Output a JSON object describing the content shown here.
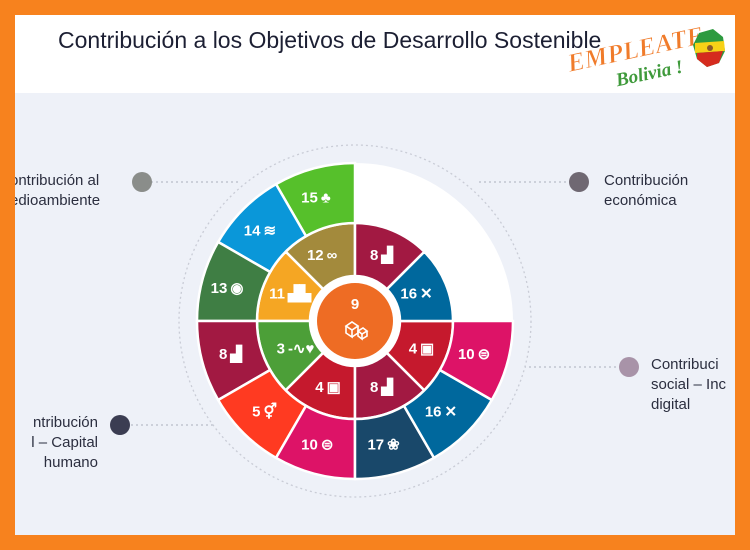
{
  "title": "Contribución a los Objetivos de Desarrollo Sostenible",
  "logo": {
    "line1": "EMPLEATE",
    "line2": "Bolivia !"
  },
  "categories": [
    {
      "id": "medioambiente",
      "lines": [
        "ontribución al",
        "edioambiente"
      ],
      "dot_color": "#8a8d8a"
    },
    {
      "id": "economica",
      "lines": [
        "Contribución",
        "económica"
      ],
      "dot_color": "#6f6872"
    },
    {
      "id": "social-inclusion",
      "lines": [
        "Contribuci",
        "social – Inc",
        "digital"
      ],
      "dot_color": "#a893a8"
    },
    {
      "id": "capital-humano",
      "lines": [
        "ntribución",
        "l – Capital",
        "humano"
      ],
      "dot_color": "#3b3d52"
    }
  ],
  "center": {
    "number": "9",
    "color": "#ee6c24"
  },
  "segments": [
    {
      "ring": "inner",
      "number": "12",
      "symbol": "∞",
      "color": "#a38a3c"
    },
    {
      "ring": "inner",
      "number": "11",
      "symbol": "▟▙",
      "color": "#f5a623"
    },
    {
      "ring": "inner",
      "number": "3",
      "symbol": "-∿♥",
      "color": "#4c9f38"
    },
    {
      "ring": "inner",
      "number": "4",
      "symbol": "▣",
      "color": "#c5192d"
    },
    {
      "ring": "inner",
      "number": "8",
      "symbol": "▟",
      "color": "#a21942"
    },
    {
      "ring": "inner",
      "number": "4",
      "symbol": "▣",
      "color": "#c5192d"
    },
    {
      "ring": "inner",
      "number": "16",
      "symbol": "✕",
      "color": "#00689d"
    },
    {
      "ring": "inner",
      "number": "8",
      "symbol": "▟",
      "color": "#a21942"
    },
    {
      "ring": "outer",
      "number": "15",
      "symbol": "♣",
      "color": "#56c02b"
    },
    {
      "ring": "outer",
      "number": "14",
      "symbol": "≋",
      "color": "#0a97d9"
    },
    {
      "ring": "outer",
      "number": "13",
      "symbol": "◉",
      "color": "#3f7e44"
    },
    {
      "ring": "outer",
      "number": "8",
      "symbol": "▟",
      "color": "#a21942"
    },
    {
      "ring": "outer",
      "number": "5",
      "symbol": "⚥",
      "color": "#ff3a21"
    },
    {
      "ring": "outer",
      "number": "10",
      "symbol": "⊜",
      "color": "#dd1367"
    },
    {
      "ring": "outer",
      "number": "17",
      "symbol": "❀",
      "color": "#19486a"
    },
    {
      "ring": "outer",
      "number": "16",
      "symbol": "✕",
      "color": "#00689d"
    },
    {
      "ring": "outer",
      "number": "10",
      "symbol": "⊜",
      "color": "#dd1367"
    }
  ]
}
